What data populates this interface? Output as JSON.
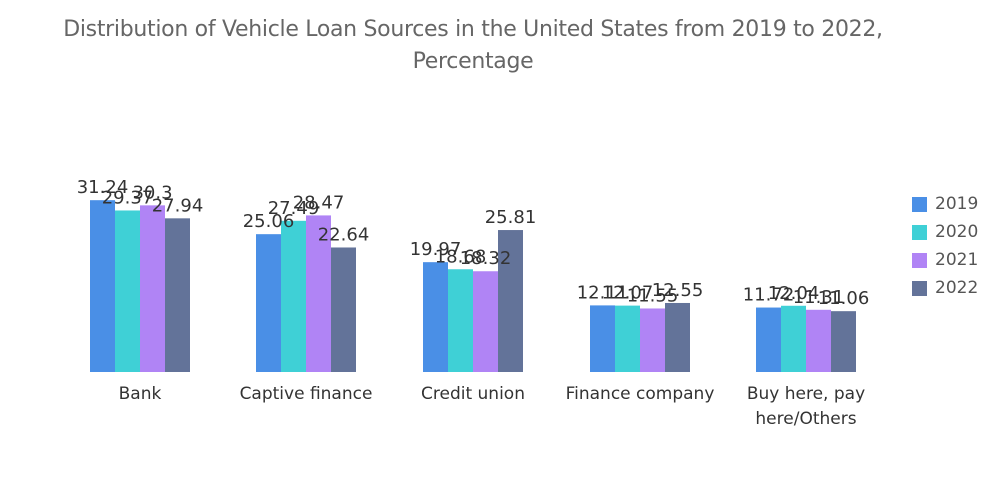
{
  "chart_data": {
    "type": "bar",
    "title_line1": "Distribution of Vehicle Loan Sources in the United States from 2019 to 2022,",
    "title_line2": "Percentage",
    "categories": [
      [
        "Bank"
      ],
      [
        "Captive finance"
      ],
      [
        "Credit union"
      ],
      [
        "Finance company"
      ],
      [
        "Buy here, pay",
        "here/Others"
      ]
    ],
    "series": [
      {
        "name": "2019",
        "color": "#4a8fe6",
        "values": [
          31.24,
          25.06,
          19.97,
          12.11,
          11.72
        ]
      },
      {
        "name": "2020",
        "color": "#3fd0d6",
        "values": [
          29.37,
          27.49,
          18.68,
          12.07,
          12.04
        ]
      },
      {
        "name": "2021",
        "color": "#b084f5",
        "values": [
          30.3,
          28.47,
          18.32,
          11.55,
          11.31
        ]
      },
      {
        "name": "2022",
        "color": "#637399",
        "values": [
          27.94,
          22.64,
          25.81,
          12.55,
          11.06
        ]
      }
    ],
    "xlabel": "",
    "ylabel": "",
    "ylim": [
      0,
      35
    ],
    "grid": false,
    "legend": "right"
  }
}
